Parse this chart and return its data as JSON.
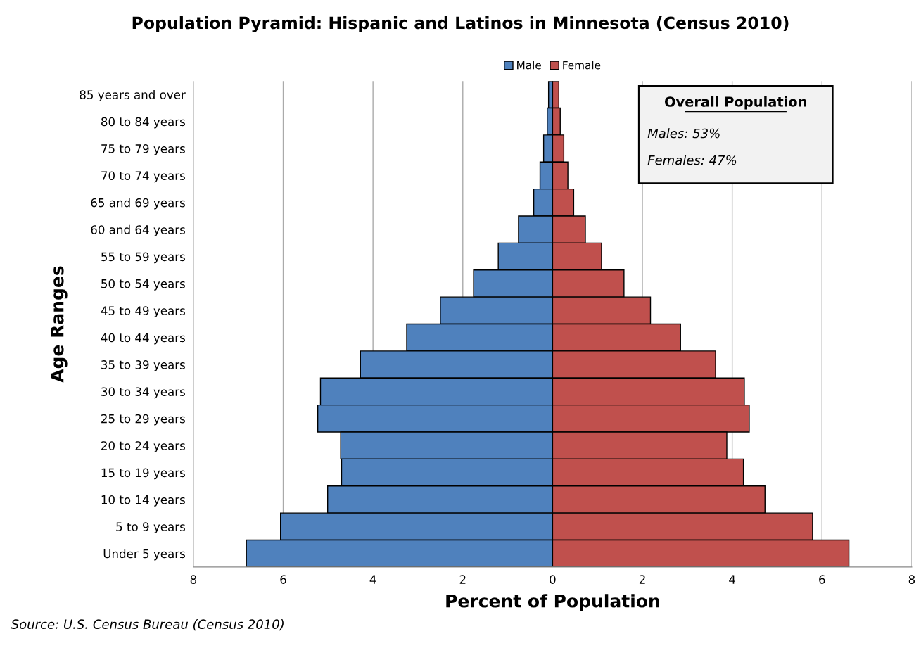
{
  "chart_data": {
    "type": "bar",
    "orientation": "horizontal",
    "stacked": true,
    "title": "Population Pyramid: Hispanic and Latinos in Minnesota (Census 2010)",
    "xlabel": "Percent of Population",
    "ylabel": "Age Ranges",
    "categories": [
      "85 years and over",
      "80 to 84 years",
      "75 to 79 years",
      "70 to 74 years",
      "65 and 69 years",
      "60 and 64 years",
      "55 to 59 years",
      "50 to 54 years",
      "45 to 49 years",
      "40 to 44 years",
      "35 to 39 years",
      "30 to 34 years",
      "25 to 29 years",
      "20 to 24 years",
      "15 to 19 years",
      "10 to 14 years",
      "5 to 9 years",
      "Under 5 years"
    ],
    "series": [
      {
        "name": "Male",
        "color": "#4f81bd",
        "values": [
          -0.09,
          -0.12,
          -0.2,
          -0.28,
          -0.42,
          -0.76,
          -1.21,
          -1.76,
          -2.5,
          -3.25,
          -4.28,
          -5.17,
          -5.23,
          -4.72,
          -4.7,
          -5.01,
          -6.06,
          -6.82
        ]
      },
      {
        "name": "Female",
        "color": "#c0504d",
        "values": [
          0.14,
          0.17,
          0.25,
          0.34,
          0.47,
          0.73,
          1.09,
          1.59,
          2.18,
          2.85,
          3.63,
          4.27,
          4.38,
          3.88,
          4.25,
          4.73,
          5.79,
          6.6
        ]
      }
    ],
    "xlim": [
      -8,
      8
    ],
    "xticks": [
      {
        "value": -8,
        "label": "8"
      },
      {
        "value": -6,
        "label": "6"
      },
      {
        "value": -4,
        "label": "4"
      },
      {
        "value": -2,
        "label": "2"
      },
      0,
      2,
      4,
      6,
      8
    ],
    "grid": "x",
    "legend": "top",
    "annotations": [
      "Overall Population",
      "Males: 53%",
      "Females: 47%",
      "Source: U.S. Census Bureau (Census 2010)"
    ]
  }
}
